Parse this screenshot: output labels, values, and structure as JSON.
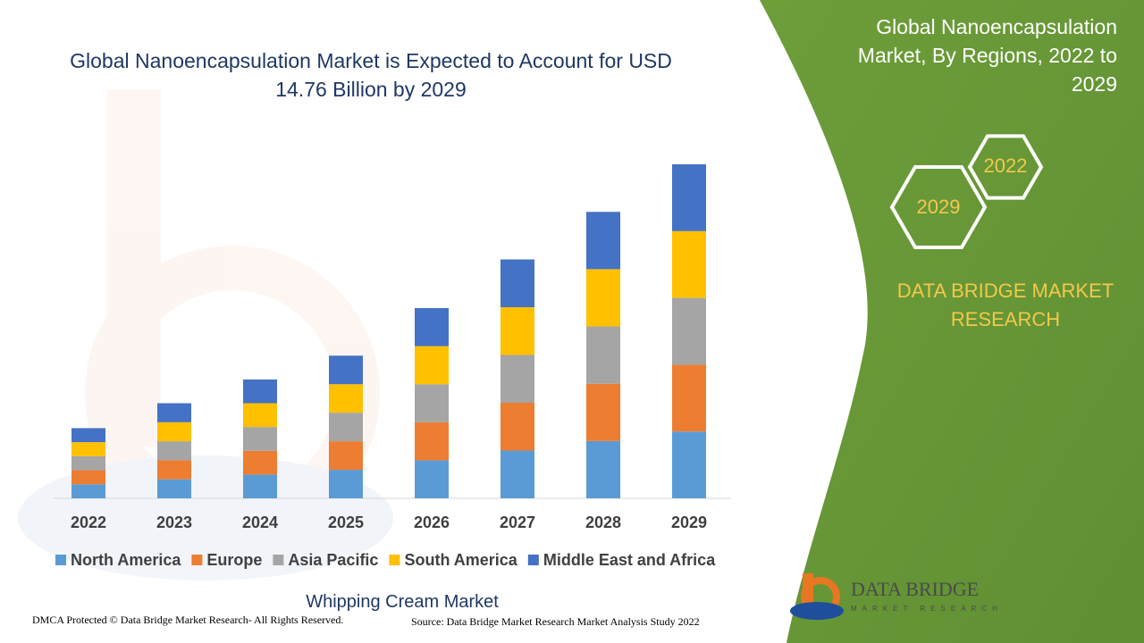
{
  "chart_data": {
    "type": "bar",
    "stacked": true,
    "title": "Global Nanoencapsulation Market is Expected to Account for USD 14.76 Billion by 2029",
    "categories": [
      "2022",
      "2023",
      "2024",
      "2025",
      "2026",
      "2027",
      "2028",
      "2029"
    ],
    "series": [
      {
        "name": "North America",
        "color": "#5b9bd5",
        "values": [
          0.62,
          0.84,
          1.05,
          1.26,
          1.68,
          2.11,
          2.53,
          2.95
        ]
      },
      {
        "name": "Europe",
        "color": "#ed7d31",
        "values": [
          0.62,
          0.84,
          1.05,
          1.26,
          1.68,
          2.11,
          2.53,
          2.95
        ]
      },
      {
        "name": "Asia Pacific",
        "color": "#a5a5a5",
        "values": [
          0.62,
          0.84,
          1.05,
          1.26,
          1.68,
          2.11,
          2.53,
          2.95
        ]
      },
      {
        "name": "South America",
        "color": "#ffc000",
        "values": [
          0.62,
          0.84,
          1.05,
          1.26,
          1.68,
          2.11,
          2.53,
          2.95
        ]
      },
      {
        "name": "Middle East and Africa",
        "color": "#4472c4",
        "values": [
          0.62,
          0.84,
          1.05,
          1.26,
          1.68,
          2.11,
          2.53,
          2.95
        ]
      }
    ],
    "legend": "bottom"
  },
  "panel": {
    "title": "Global Nanoencapsulation Market, By Regions, 2022 to 2029",
    "hexagons": [
      "2022",
      "2029"
    ],
    "brand": "DATA BRIDGE MARKET RESEARCH"
  },
  "footer": {
    "subtitle": "Whipping Cream Market",
    "copyright": "DMCA Protected © Data Bridge Market Research- All Rights Reserved.",
    "source": "Source: Data Bridge Market Research Market Analysis Study 2022"
  },
  "logo": {
    "name": "DATA BRIDGE",
    "tagline": "MARKET RESEARCH"
  }
}
